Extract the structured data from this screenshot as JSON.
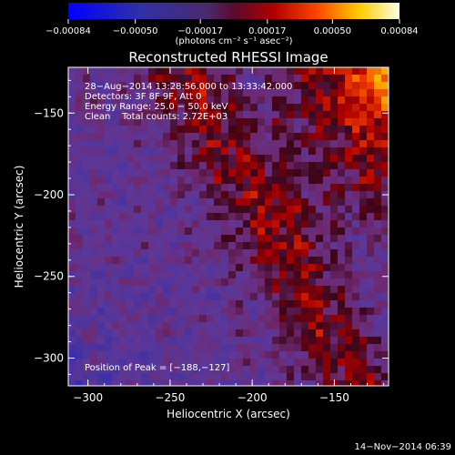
{
  "chart_data": {
    "type": "heatmap",
    "title": "Reconstructed RHESSI Image",
    "xlabel": "Heliocentric X (arcsec)",
    "ylabel": "Heliocentric Y (arcsec)",
    "xlim": [
      -312,
      -117
    ],
    "ylim": [
      -317,
      -122
    ],
    "x_ticks": [
      -300,
      -250,
      -200,
      -150
    ],
    "y_ticks": [
      -150,
      -200,
      -250,
      -300
    ],
    "x_tick_labels": [
      "−300",
      "−250",
      "−200",
      "−150"
    ],
    "y_tick_labels": [
      "−150",
      "−200",
      "−250",
      "−300"
    ],
    "colorbar": {
      "range": [
        -0.00084,
        0.00084
      ],
      "tick_values": [
        -0.00084,
        -0.0005,
        -0.00017,
        0.00017,
        0.0005,
        0.00084
      ],
      "tick_labels": [
        "−0.00084",
        "−0.00050",
        "−0.00017",
        "0.00017",
        "0.00050",
        "0.00084"
      ],
      "unit_label": "(photons cm⁻² s⁻¹ asec⁻²)"
    },
    "annotations": [
      "28−Aug−2014 13:28:56.000 to 13:33:42.000",
      "Detectors: 3F 8F 9F, Att 0",
      "Energy Range: 25.0 − 50.0 keV",
      "Clean    Total counts: 2.72E+03"
    ],
    "peak_label": "Position of Peak = [−188,−127]",
    "peak": [
      -188,
      -127
    ],
    "grid": false,
    "legend": "colorbar-top"
  },
  "footer": {
    "date": "14−Nov−2014 06:39"
  },
  "colors": {
    "background": "#000000",
    "cmap_low": "#0000ff",
    "cmap_mid_low": "#6a2d8a",
    "cmap_mid": "#cc0000",
    "cmap_high": "#ffff00",
    "cmap_max": "#ffffff"
  }
}
